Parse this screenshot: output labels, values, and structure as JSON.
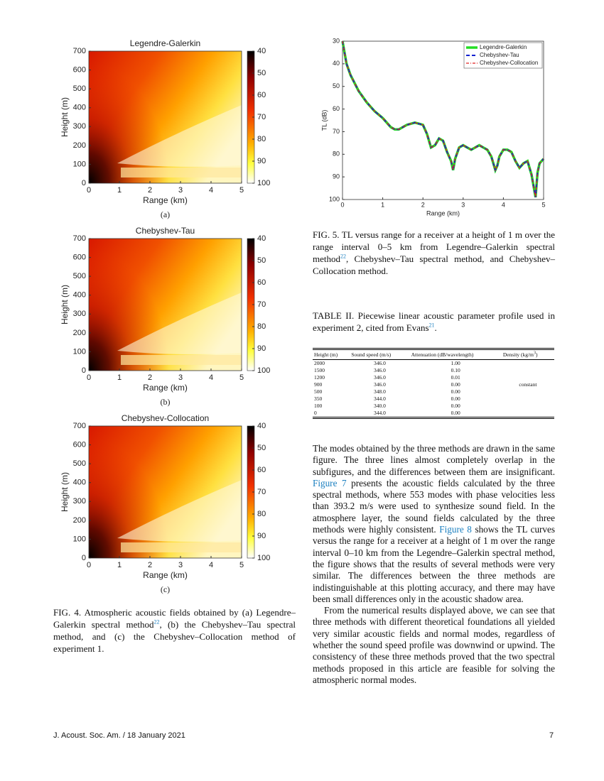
{
  "figure4": {
    "panels": [
      {
        "title": "Legendre-Galerkin",
        "label": "(a)",
        "xlabel": "Range (km)",
        "ylabel": "Height (m)",
        "xlim": [
          0,
          5
        ],
        "xticks": [
          0,
          1,
          2,
          3,
          4,
          5
        ],
        "ylim": [
          0,
          700
        ],
        "yticks": [
          0,
          100,
          200,
          300,
          400,
          500,
          600,
          700
        ],
        "clim": [
          40,
          100
        ],
        "cticks": [
          40,
          50,
          60,
          70,
          80,
          90,
          100
        ]
      },
      {
        "title": "Chebyshev-Tau",
        "label": "(b)",
        "xlabel": "Range (km)",
        "ylabel": "Height (m)",
        "xlim": [
          0,
          5
        ],
        "xticks": [
          0,
          1,
          2,
          3,
          4,
          5
        ],
        "ylim": [
          0,
          700
        ],
        "yticks": [
          0,
          100,
          200,
          300,
          400,
          500,
          600,
          700
        ],
        "clim": [
          40,
          100
        ],
        "cticks": [
          40,
          50,
          60,
          70,
          80,
          90,
          100
        ]
      },
      {
        "title": "Chebyshev-Collocation",
        "label": "(c)",
        "xlabel": "Range (km)",
        "ylabel": "Height (m)",
        "xlim": [
          0,
          5
        ],
        "xticks": [
          0,
          1,
          2,
          3,
          4,
          5
        ],
        "ylim": [
          0,
          700
        ],
        "yticks": [
          0,
          100,
          200,
          300,
          400,
          500,
          600,
          700
        ],
        "clim": [
          40,
          100
        ],
        "cticks": [
          40,
          50,
          60,
          70,
          80,
          90,
          100
        ]
      }
    ],
    "caption": [
      {
        "text": "FIG. 4.    Atmospheric acoustic fields obtained by (a) Legendre–Galerkin spectral method"
      },
      {
        "text": "22",
        "sup": true
      },
      {
        "text": ", (b) the Chebyshev–Tau spectral method, and (c) the Chebyshev–Collocation method of experiment 1."
      }
    ]
  },
  "figure5": {
    "chart_data": {
      "type": "line",
      "xlabel": "Range (km)",
      "ylabel": "TL (dB)",
      "xlim": [
        0,
        5
      ],
      "xticks": [
        0,
        1,
        2,
        3,
        4,
        5
      ],
      "ylim": [
        30,
        100
      ],
      "yreverse": true,
      "yticks": [
        30,
        40,
        50,
        60,
        70,
        80,
        90,
        100
      ],
      "legend": "upper right",
      "x": [
        0,
        0.1,
        0.2,
        0.4,
        0.6,
        0.8,
        1.0,
        1.2,
        1.3,
        1.4,
        1.6,
        1.8,
        2.0,
        2.1,
        2.2,
        2.3,
        2.4,
        2.5,
        2.6,
        2.7,
        2.75,
        2.8,
        2.9,
        3.0,
        3.1,
        3.2,
        3.3,
        3.4,
        3.5,
        3.6,
        3.7,
        3.8,
        3.85,
        3.9,
        4.0,
        4.1,
        4.2,
        4.3,
        4.4,
        4.5,
        4.6,
        4.7,
        4.8,
        4.85,
        4.9,
        5.0
      ],
      "series": [
        {
          "name": "Legendre-Galerkin",
          "color": "#22dd22",
          "style": "solid",
          "values": [
            30,
            40,
            45,
            52,
            57,
            61,
            64,
            68,
            69,
            69,
            67,
            66,
            67,
            71,
            77,
            76,
            73,
            74,
            79,
            83,
            87,
            82,
            77,
            76,
            77,
            78,
            77,
            76,
            77,
            78,
            81,
            87,
            85,
            81,
            78,
            78,
            79,
            83,
            86,
            84,
            83,
            89,
            99,
            88,
            84,
            82
          ]
        },
        {
          "name": "Chebyshev-Tau",
          "color": "#1020d0",
          "style": "dash",
          "values": [
            30,
            40,
            45,
            52,
            57,
            61,
            64,
            68,
            69,
            69,
            67,
            66,
            67,
            71,
            77,
            76,
            73,
            74,
            79,
            83,
            87,
            82,
            77,
            76,
            77,
            78,
            77,
            76,
            77,
            78,
            81,
            87,
            85,
            81,
            78,
            78,
            79,
            83,
            86,
            84,
            83,
            89,
            99,
            88,
            84,
            82
          ]
        },
        {
          "name": "Chebyshev-Collocation",
          "color": "#e02020",
          "style": "dashdot",
          "values": [
            30,
            40,
            45,
            52,
            57,
            61,
            64,
            68,
            69,
            69,
            67,
            66,
            67,
            71,
            77,
            76,
            73,
            74,
            79,
            83,
            87,
            82,
            77,
            76,
            77,
            78,
            77,
            76,
            77,
            78,
            81,
            87,
            85,
            81,
            78,
            78,
            79,
            83,
            86,
            84,
            83,
            89,
            99,
            88,
            84,
            82
          ]
        }
      ]
    },
    "caption": [
      {
        "text": "FIG. 5. TL versus range for a receiver at a height of 1 m over the range interval 0–5 km from Legendre–Galerkin spectral method"
      },
      {
        "text": "22",
        "sup": true
      },
      {
        "text": ", Chebyshev–Tau spectral method, and Chebyshev–Collocation method."
      }
    ]
  },
  "table": {
    "caption": [
      {
        "text": "TABLE II. Piecewise linear acoustic parameter profile used in experiment 2, cited from Evans"
      },
      {
        "text": "21",
        "sup": true
      },
      {
        "text": "."
      }
    ],
    "header": [
      "Height (m)",
      "Sound speed (m/s)",
      "Attenuation (dB/wavelength)",
      "Density (kg/m",
      "3",
      ")"
    ],
    "rows": [
      [
        "2000",
        "346.0",
        "1.00",
        ""
      ],
      [
        "1500",
        "346.0",
        "0.10",
        ""
      ],
      [
        "1200",
        "346.0",
        "0.01",
        ""
      ],
      [
        "900",
        "346.0",
        "0.00",
        "constant"
      ],
      [
        "500",
        "348.0",
        "0.00",
        ""
      ],
      [
        "350",
        "344.0",
        "0.00",
        ""
      ],
      [
        "100",
        "340.0",
        "0.00",
        ""
      ],
      [
        "0",
        "344.0",
        "0.00",
        ""
      ]
    ]
  },
  "body": [
    [
      {
        "text": "The modes obtained by the three methods are drawn in the same figure.  The three lines almost completely overlap in the subfigures, and the differences between them are insignificant. "
      },
      {
        "text": "Figure 7",
        "link": true
      },
      {
        "text": " presents the acoustic fields calculated by the three spectral methods, where 553 modes with phase velocities less than 393.2 m/s were used to synthesize sound field. In the atmosphere layer, the sound fields calculated by the three methods were highly consistent. "
      },
      {
        "text": "Figure 8",
        "link": true
      },
      {
        "text": " shows the TL curves versus the range for a receiver at a height of 1 m over the range interval 0–10 km from the Legendre–Galerkin spectral method, the figure shows that the results of several methods were very similar. The differences between the three methods are indistinguishable at this plotting accuracy, and there may have been small differences only in the acoustic shadow area."
      }
    ],
    [
      {
        "text": "From the numerical results displayed above, we can see that three methods with different theoretical foundations all yielded very similar acoustic fields and normal modes, regardless of whether the sound speed profile was downwind or upwind.  The consistency of these three methods proved that the two spectral methods proposed in this article are feasible for solving the atmospheric normal modes."
      }
    ]
  ],
  "footer": {
    "journal": "J. Acoust. Soc. Am.  /  18 January 2021",
    "page": "7"
  }
}
